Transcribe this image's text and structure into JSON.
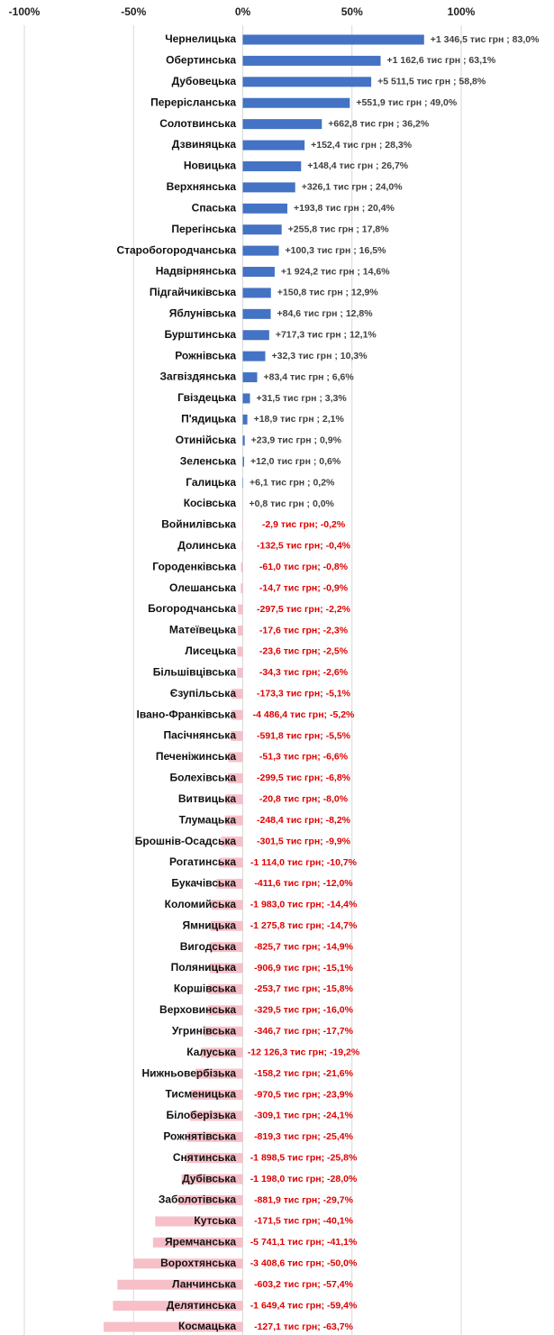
{
  "chart_data": {
    "type": "bar",
    "orientation": "horizontal",
    "categories": [
      "Чернелицька",
      "Обертинська",
      "Дубовецька",
      "Перерісланська",
      "Солотвинська",
      "Дзвиняцька",
      "Новицька",
      "Верхнянська",
      "Спаська",
      "Перегінська",
      "Старобогородчанська",
      "Надвірнянська",
      "Підгайчиківська",
      "Яблунівська",
      "Бурштинська",
      "Рожнівська",
      "Загвіздянська",
      "Гвіздецька",
      "П'ядицька",
      "Отинійська",
      "Зеленська",
      "Галицька",
      "Косівська",
      "Войнилівська",
      "Долинська",
      "Городенківська",
      "Олешанська",
      "Богородчанська",
      "Матеївецька",
      "Лисецька",
      "Більшівцівська",
      "Єзупільська",
      "Івано-Франківська",
      "Пасічнянська",
      "Печеніжинська",
      "Болехівська",
      "Витвицька",
      "Тлумацька",
      "Брошнів-Осадська",
      "Рогатинська",
      "Букачівська",
      "Коломийська",
      "Ямницька",
      "Вигодська",
      "Поляницька",
      "Коршівська",
      "Верховинська",
      "Угринівська",
      "Калуська",
      "Нижньовербізька",
      "Тисменицька",
      "Білоберізька",
      "Рожнятівська",
      "Снятинська",
      "Дубівська",
      "Заболотівська",
      "Кутська",
      "Яремчанська",
      "Ворохтянська",
      "Ланчинська",
      "Делятинська",
      "Космацька"
    ],
    "values": [
      83.0,
      63.1,
      58.8,
      49.0,
      36.2,
      28.3,
      26.7,
      24.0,
      20.4,
      17.8,
      16.5,
      14.6,
      12.9,
      12.8,
      12.1,
      10.3,
      6.6,
      3.3,
      2.1,
      0.9,
      0.6,
      0.2,
      0.0,
      -0.2,
      -0.4,
      -0.8,
      -0.9,
      -2.2,
      -2.3,
      -2.5,
      -2.6,
      -5.1,
      -5.2,
      -5.5,
      -6.6,
      -6.8,
      -8.0,
      -8.2,
      -9.9,
      -10.7,
      -12.0,
      -14.4,
      -14.7,
      -14.9,
      -15.1,
      -15.8,
      -16.0,
      -17.7,
      -19.2,
      -21.6,
      -23.9,
      -24.1,
      -25.4,
      -25.8,
      -28.0,
      -29.7,
      -40.1,
      -41.1,
      -50.0,
      -57.4,
      -59.4,
      -63.7
    ],
    "value_labels": [
      "+1 346,5 тис грн ; 83,0%",
      "+1 162,6 тис грн ; 63,1%",
      "+5 511,5 тис грн ; 58,8%",
      "+551,9 тис грн ; 49,0%",
      "+662,8 тис грн ; 36,2%",
      "+152,4 тис грн ; 28,3%",
      "+148,4 тис грн ; 26,7%",
      "+326,1 тис грн ; 24,0%",
      "+193,8 тис грн ; 20,4%",
      "+255,8 тис грн ; 17,8%",
      "+100,3 тис грн ; 16,5%",
      "+1 924,2 тис грн ; 14,6%",
      "+150,8 тис грн ; 12,9%",
      "+84,6 тис грн ; 12,8%",
      "+717,3 тис грн ; 12,1%",
      "+32,3 тис грн ; 10,3%",
      "+83,4 тис грн ; 6,6%",
      "+31,5 тис грн ; 3,3%",
      "+18,9 тис грн ; 2,1%",
      "+23,9 тис грн ; 0,9%",
      "+12,0 тис грн ; 0,6%",
      "+6,1 тис грн ; 0,2%",
      "+0,8 тис грн ; 0,0%",
      "-2,9 тис грн; -0,2%",
      "-132,5 тис грн; -0,4%",
      "-61,0 тис грн; -0,8%",
      "-14,7 тис грн; -0,9%",
      "-297,5 тис грн; -2,2%",
      "-17,6 тис грн; -2,3%",
      "-23,6 тис грн; -2,5%",
      "-34,3 тис грн; -2,6%",
      "-173,3 тис грн; -5,1%",
      "-4 486,4 тис грн; -5,2%",
      "-591,8 тис грн; -5,5%",
      "-51,3 тис грн; -6,6%",
      "-299,5 тис грн; -6,8%",
      "-20,8 тис грн; -8,0%",
      "-248,4 тис грн; -8,2%",
      "-301,5 тис грн; -9,9%",
      "-1 114,0 тис грн; -10,7%",
      "-411,6 тис грн; -12,0%",
      "-1 983,0 тис грн; -14,4%",
      "-1 275,8 тис грн; -14,7%",
      "-825,7 тис грн; -14,9%",
      "-906,9 тис грн; -15,1%",
      "-253,7 тис грн; -15,8%",
      "-329,5 тис грн; -16,0%",
      "-346,7 тис грн; -17,7%",
      "-12 126,3 тис грн; -19,2%",
      "-158,2 тис грн; -21,6%",
      "-970,5 тис грн; -23,9%",
      "-309,1 тис грн; -24,1%",
      "-819,3 тис грн; -25,4%",
      "-1 898,5 тис грн; -25,8%",
      "-1 198,0 тис грн; -28,0%",
      "-881,9 тис грн; -29,7%",
      "-171,5 тис грн; -40,1%",
      "-5 741,1 тис грн; -41,1%",
      "-3 408,6 тис грн; -50,0%",
      "-603,2 тис грн; -57,4%",
      "-1 649,4 тис грн; -59,4%",
      "-127,1 тис грн; -63,7%"
    ],
    "color": "#4472c4",
    "negative_color": "#f7c0c8",
    "xlim": [
      -100,
      100
    ],
    "xticks": [
      {
        "value": -100,
        "label": "-100%"
      },
      {
        "value": -50,
        "label": "-50%"
      },
      {
        "value": 0,
        "label": "0%"
      },
      {
        "value": 50,
        "label": "50%"
      },
      {
        "value": 100,
        "label": "100%"
      }
    ],
    "grid": true
  }
}
